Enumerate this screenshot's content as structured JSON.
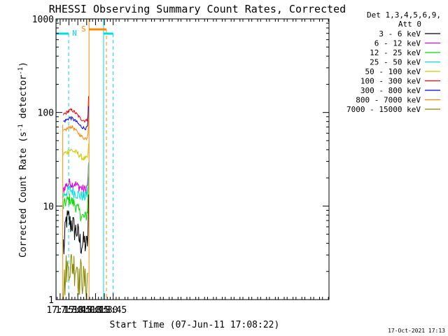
{
  "chart_data": {
    "type": "line",
    "title": "RHESSI Observing Summary Count Rates, Corrected",
    "xlabel": "Start Time (07-Jun-11 17:08:22)",
    "ylabel_main": "Corrected Count Rate (s",
    "ylabel_sup1": "-1",
    "ylabel_mid": " detector",
    "ylabel_sup2": "-1",
    "ylabel_end": ")",
    "yscale": "log",
    "ylim": [
      1,
      1000
    ],
    "xlim_min": [
      1028,
      1491
    ],
    "y_ticks": [
      {
        "value": 1,
        "label": "1"
      },
      {
        "value": 10,
        "label": "10"
      },
      {
        "value": 100,
        "label": "100"
      },
      {
        "value": 1000,
        "label": "1000"
      }
    ],
    "x_ticks": [
      {
        "value": 1035,
        "label": "17:15"
      },
      {
        "value": 1050,
        "label": "17:30"
      },
      {
        "value": 1065,
        "label": "17:45"
      },
      {
        "value": 1080,
        "label": "18:00"
      },
      {
        "value": 1095,
        "label": "18:15"
      },
      {
        "value": 1110,
        "label": "18:30"
      },
      {
        "value": 1125,
        "label": "18:45"
      }
    ],
    "legend_header_line1": "Det 1,3,4,5,6,9,",
    "legend_header_line2": "Att 0",
    "legend_placement": "right",
    "series": [
      {
        "name": "3 - 6 keV",
        "color": "#000000",
        "x": [
          1040.5,
          1042,
          1044,
          1046,
          1048,
          1050,
          1052,
          1055,
          1058,
          1061,
          1064,
          1067,
          1070,
          1073,
          1076,
          1079,
          1081,
          1082.5,
          1083,
          1083.5
        ],
        "y": [
          4.0,
          3.2,
          6.0,
          7.5,
          7.0,
          7.5,
          6.5,
          6.8,
          6.0,
          5.5,
          5.5,
          4.5,
          4.0,
          4.0,
          4.2,
          3.8,
          4.0,
          5.0,
          8.0,
          14.0
        ]
      },
      {
        "name": "6 - 12 keV",
        "color": "#dd00dd",
        "x": [
          1040.5,
          1044,
          1048,
          1052,
          1056,
          1060,
          1064,
          1068,
          1072,
          1076,
          1080,
          1082,
          1083,
          1083.5
        ],
        "y": [
          15.0,
          16.5,
          17.0,
          18.0,
          17.0,
          17.5,
          16.5,
          16.0,
          15.5,
          15.0,
          15.5,
          18.0,
          24.0,
          30.0
        ]
      },
      {
        "name": "12 - 25 keV",
        "color": "#00dd00",
        "x": [
          1040.5,
          1044,
          1048,
          1052,
          1056,
          1060,
          1064,
          1068,
          1072,
          1076,
          1080,
          1082,
          1083,
          1083.5
        ],
        "y": [
          10.0,
          11.0,
          11.5,
          12.0,
          11.0,
          10.5,
          9.5,
          8.5,
          7.8,
          7.5,
          8.0,
          10.0,
          16.0,
          26.0
        ]
      },
      {
        "name": "25 - 50 keV",
        "color": "#00dddd",
        "x": [
          1040.5,
          1044,
          1048,
          1052,
          1056,
          1060,
          1064,
          1068,
          1072,
          1076,
          1080,
          1082,
          1083,
          1083.5
        ],
        "y": [
          13.0,
          14.0,
          14.5,
          15.0,
          14.5,
          14.0,
          13.5,
          13.0,
          13.0,
          12.5,
          13.0,
          15.0,
          22.0,
          32.0
        ]
      },
      {
        "name": "50 - 100 keV",
        "color": "#cccc00",
        "x": [
          1040.5,
          1044,
          1048,
          1052,
          1056,
          1060,
          1064,
          1068,
          1072,
          1076,
          1080,
          1082,
          1083,
          1083.5
        ],
        "y": [
          36.0,
          37.0,
          38.0,
          40.0,
          39.0,
          38.0,
          37.0,
          35.0,
          33.0,
          32.0,
          32.0,
          34.0,
          40.0,
          48.0
        ]
      },
      {
        "name": "100 - 300 keV",
        "color": "#ee0000",
        "x": [
          1040.5,
          1044,
          1048,
          1052,
          1056,
          1060,
          1064,
          1068,
          1072,
          1076,
          1080,
          1082,
          1083,
          1083.5
        ],
        "y": [
          95.0,
          98.0,
          102.0,
          106.0,
          105.0,
          100.0,
          95.0,
          88.0,
          84.0,
          82.0,
          82.0,
          88.0,
          115.0,
          180.0
        ]
      },
      {
        "name": "300 - 800 keV",
        "color": "#0000ee",
        "x": [
          1040.5,
          1044,
          1048,
          1052,
          1056,
          1060,
          1064,
          1068,
          1072,
          1076,
          1080,
          1082,
          1083,
          1083.5
        ],
        "y": [
          80.0,
          82.0,
          85.0,
          88.0,
          86.0,
          82.0,
          78.0,
          73.0,
          70.0,
          68.0,
          68.0,
          73.0,
          95.0,
          135.0
        ]
      },
      {
        "name": "800 - 7000 keV",
        "color": "#ff8800",
        "x": [
          1040.5,
          1044,
          1048,
          1052,
          1056,
          1060,
          1064,
          1068,
          1072,
          1076,
          1080,
          1082,
          1083,
          1083.5
        ],
        "y": [
          63.0,
          65.0,
          68.0,
          70.0,
          70.0,
          66.0,
          62.0,
          58.0,
          55.0,
          53.0,
          53.0,
          57.0,
          73.0,
          100.0
        ]
      },
      {
        "name": "7000 - 15000 keV",
        "color": "#888800",
        "x": [
          1040.5,
          1042,
          1044,
          1046,
          1048,
          1050,
          1052,
          1055,
          1058,
          1061,
          1064,
          1067,
          1070,
          1073,
          1076,
          1079,
          1081,
          1082.5,
          1083
        ],
        "y": [
          1.5,
          1.6,
          1.7,
          2.5,
          2.0,
          2.7,
          2.3,
          2.5,
          2.4,
          2.3,
          2.4,
          1.6,
          2.0,
          1.8,
          1.6,
          1.5,
          1.6,
          2.0,
          3.0
        ]
      }
    ],
    "annotations": [
      {
        "label": "N",
        "color": "#00dddd"
      },
      {
        "label": "S",
        "color": "#ff8800"
      }
    ],
    "timestamp": "17-Oct-2021 17:13"
  }
}
